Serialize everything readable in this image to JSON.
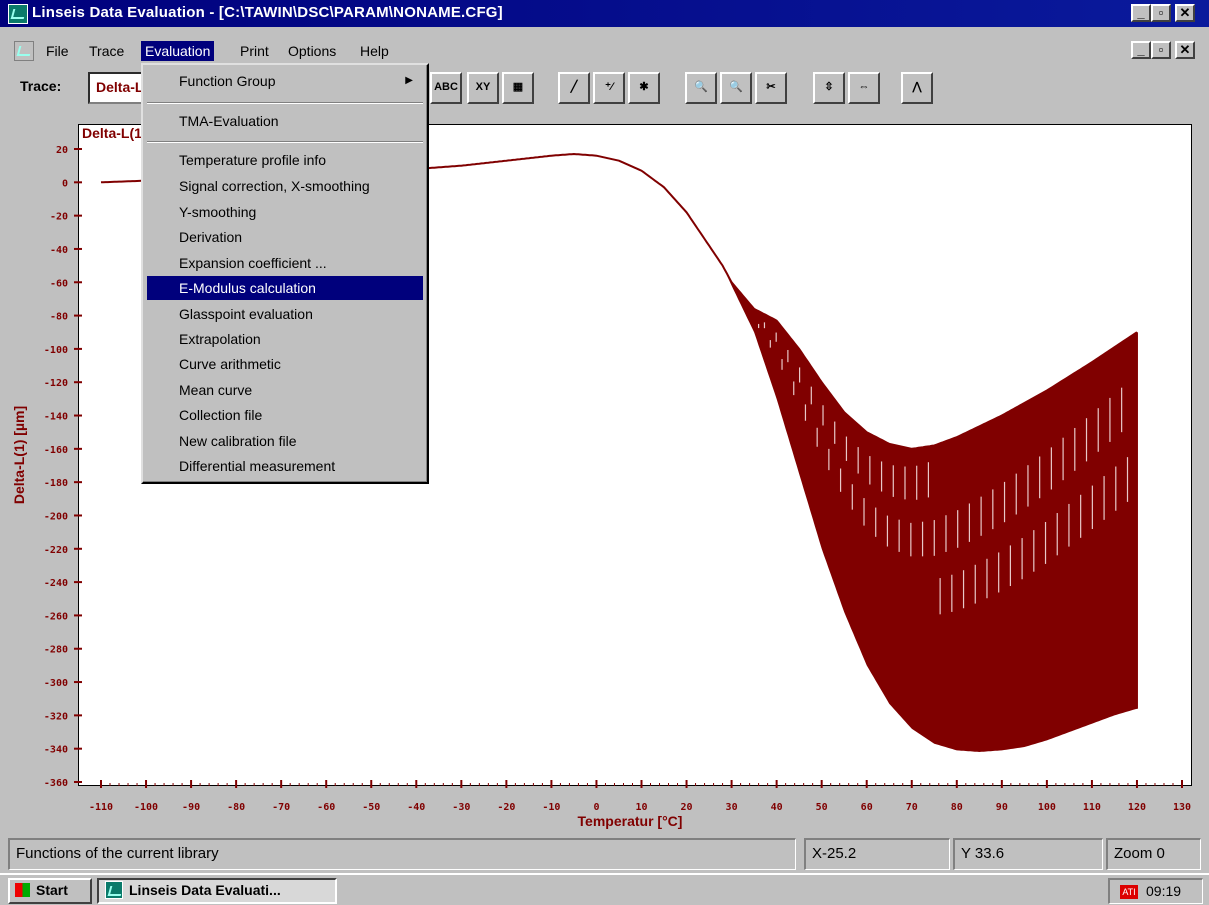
{
  "window": {
    "title": "Linseis Data Evaluation - [C:\\TAWIN\\DSC\\PARAM\\NONAME.CFG]",
    "controls": [
      "_",
      "▫",
      "✕"
    ]
  },
  "menubar": {
    "items": [
      "File",
      "Trace",
      "Evaluation",
      "Print",
      "Options",
      "Help"
    ],
    "active": "Evaluation",
    "controls": [
      "_",
      "▫",
      "✕"
    ]
  },
  "toolbar": {
    "trace_label": "Trace:",
    "trace_value": "Delta-L(1)",
    "buttons": [
      {
        "name": "abc-icon",
        "glyph": "ABC"
      },
      {
        "name": "xy-icon",
        "glyph": "XY"
      },
      {
        "name": "grid-icon",
        "glyph": "▦"
      },
      {
        "name": "line-icon",
        "glyph": "╱"
      },
      {
        "name": "tangent-icon",
        "glyph": "⁺⁄"
      },
      {
        "name": "cross-icon",
        "glyph": "✱"
      },
      {
        "name": "zoom-icon",
        "glyph": "🔍"
      },
      {
        "name": "zoom-minus-icon",
        "glyph": "🔍"
      },
      {
        "name": "scissors-icon",
        "glyph": "✂"
      },
      {
        "name": "scale-icon",
        "glyph": "⇳"
      },
      {
        "name": "hscale-icon",
        "glyph": "⇔"
      },
      {
        "name": "peak-icon",
        "glyph": "⋀"
      }
    ]
  },
  "evaluation_menu": {
    "items": [
      {
        "label": "Function Group",
        "submenu": true
      },
      {
        "separator": true
      },
      {
        "label": "TMA-Evaluation"
      },
      {
        "separator": true
      },
      {
        "label": "Temperature profile info"
      },
      {
        "label": "Signal correction, X-smoothing"
      },
      {
        "label": "Y-smoothing"
      },
      {
        "label": "Derivation"
      },
      {
        "label": "Expansion coefficient ..."
      },
      {
        "label": "E-Modulus calculation",
        "selected": true
      },
      {
        "label": "Glasspoint evaluation"
      },
      {
        "label": "Extrapolation"
      },
      {
        "label": "Curve arithmetic"
      },
      {
        "label": "Mean curve"
      },
      {
        "label": "Collection file"
      },
      {
        "label": "New calibration file"
      },
      {
        "label": "Differential measurement"
      }
    ]
  },
  "chart_data": {
    "type": "line",
    "title": "Delta-L(1)",
    "xlabel": "Temperatur  [°C]",
    "ylabel": "Delta-L(1)  [µm]",
    "xlim": [
      -115,
      130
    ],
    "ylim": [
      -360,
      25
    ],
    "x_ticks": [
      -110,
      -100,
      -90,
      -80,
      -70,
      -60,
      -50,
      -40,
      -30,
      -20,
      -10,
      0,
      10,
      20,
      30,
      40,
      50,
      60,
      70,
      80,
      90,
      100,
      110,
      120,
      130
    ],
    "y_ticks": [
      20,
      0,
      -20,
      -40,
      -60,
      -80,
      -100,
      -120,
      -140,
      -160,
      -180,
      -200,
      -220,
      -240,
      -260,
      -280,
      -300,
      -320,
      -340,
      -360
    ],
    "series_color": "#800000",
    "upper_envelope": {
      "x": [
        -110,
        -100,
        -90,
        -80,
        -70,
        -60,
        -50,
        -40,
        -30,
        -20,
        -10,
        -5,
        0,
        5,
        10,
        15,
        20,
        25,
        28,
        30,
        35,
        40,
        45,
        50,
        55,
        60,
        65,
        70,
        75,
        80,
        90,
        100,
        110,
        120
      ],
      "y": [
        0,
        1,
        2,
        4,
        5,
        6,
        7,
        8,
        10,
        13,
        16,
        17,
        16,
        13,
        7,
        -3,
        -18,
        -38,
        -50,
        -60,
        -76,
        -83,
        -100,
        -120,
        -138,
        -150,
        -157,
        -160,
        -158,
        -153,
        -140,
        -125,
        -108,
        -90
      ]
    },
    "lower_envelope": {
      "x": [
        28,
        30,
        35,
        40,
        45,
        50,
        55,
        60,
        65,
        70,
        75,
        80,
        85,
        90,
        95,
        100,
        105,
        110,
        115,
        120
      ],
      "y": [
        -50,
        -62,
        -90,
        -130,
        -175,
        -220,
        -258,
        -290,
        -313,
        -328,
        -337,
        -341,
        -342,
        -341,
        -339,
        -335,
        -330,
        -325,
        -320,
        -316
      ]
    },
    "grid": false
  },
  "status": {
    "message": "Functions of the current library",
    "x": "X-25.2",
    "y": "Y 33.6",
    "zoom": "Zoom 0"
  },
  "taskbar": {
    "start": "Start",
    "task": "Linseis Data Evaluati...",
    "clock": "09:19"
  }
}
